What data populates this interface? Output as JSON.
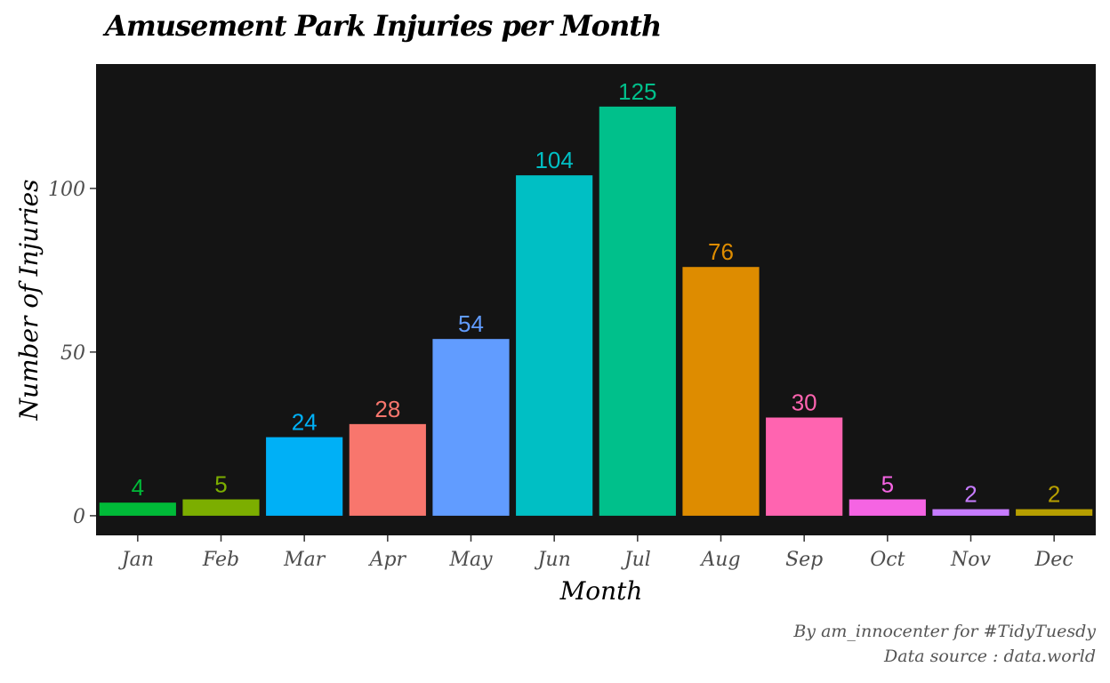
{
  "chart_data": {
    "type": "bar",
    "title": "Amusement Park Injuries per Month",
    "xlabel": "Month",
    "ylabel": "Number of Injuries",
    "categories": [
      "Jan",
      "Feb",
      "Mar",
      "Apr",
      "May",
      "Jun",
      "Jul",
      "Aug",
      "Sep",
      "Oct",
      "Nov",
      "Dec"
    ],
    "values": [
      4,
      5,
      24,
      28,
      54,
      104,
      125,
      76,
      30,
      5,
      2,
      2
    ],
    "colors": [
      "#00BA38",
      "#7CAE00",
      "#00B0F6",
      "#F8766D",
      "#619CFF",
      "#00BFC4",
      "#00C08B",
      "#DE8C00",
      "#FF64B0",
      "#F564E3",
      "#C77CFF",
      "#B79F00"
    ],
    "yticks": [
      0,
      50,
      100
    ],
    "ylim": [
      -6,
      138
    ],
    "grid": false,
    "legend": "none",
    "panel_background": "#141414"
  },
  "caption": {
    "line1": "By am_innocenter for #TidyTuesdy",
    "line2": "Data source : data.world"
  }
}
